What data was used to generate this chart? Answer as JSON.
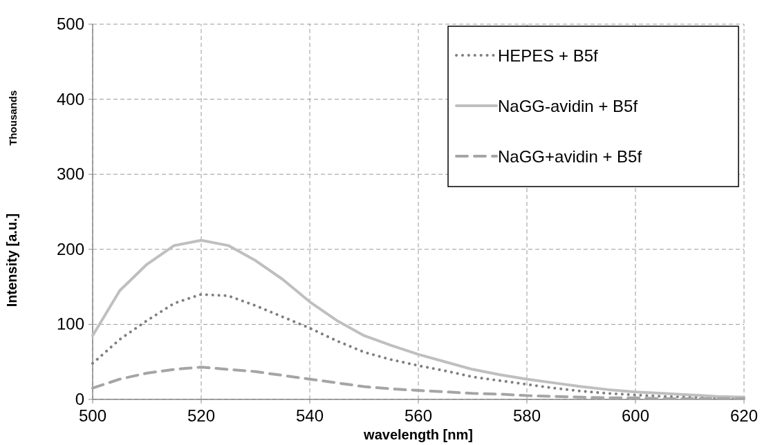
{
  "chart_data": {
    "type": "line",
    "xlabel": "wavelength [nm]",
    "ylabel": "Intensity [a.u.]",
    "annotations": [
      "Thousands"
    ],
    "x": [
      500,
      505,
      510,
      515,
      520,
      525,
      530,
      535,
      540,
      545,
      550,
      555,
      560,
      565,
      570,
      575,
      580,
      585,
      590,
      595,
      600,
      605,
      610,
      615,
      620
    ],
    "xlim": [
      500,
      620
    ],
    "xticks": [
      500,
      520,
      540,
      560,
      580,
      600,
      620
    ],
    "ylim": [
      0,
      500
    ],
    "yticks": [
      0,
      100,
      200,
      300,
      400,
      500
    ],
    "grid": true,
    "legend": "top right",
    "series": [
      {
        "name": "HEPES + B5f",
        "color": "#7f7f7f",
        "line_style": "dotted",
        "values": [
          48,
          80,
          105,
          128,
          140,
          138,
          125,
          110,
          95,
          78,
          63,
          53,
          45,
          38,
          30,
          25,
          20,
          15,
          11,
          8,
          6,
          4,
          3,
          2,
          2
        ]
      },
      {
        "name": "NaGG-avidin + B5f",
        "color": "#bfbfbf",
        "line_style": "solid",
        "values": [
          85,
          145,
          180,
          205,
          212,
          205,
          185,
          160,
          130,
          105,
          85,
          72,
          60,
          50,
          40,
          33,
          27,
          22,
          17,
          13,
          10,
          8,
          6,
          4,
          3
        ]
      },
      {
        "name": "NaGG+avidin + B5f",
        "color": "#a5a5a5",
        "line_style": "dashed",
        "values": [
          15,
          27,
          35,
          40,
          43,
          40,
          37,
          32,
          27,
          22,
          17,
          14,
          12,
          10,
          8,
          7,
          5,
          4,
          3,
          2,
          2,
          1,
          1,
          1,
          1
        ]
      }
    ]
  }
}
